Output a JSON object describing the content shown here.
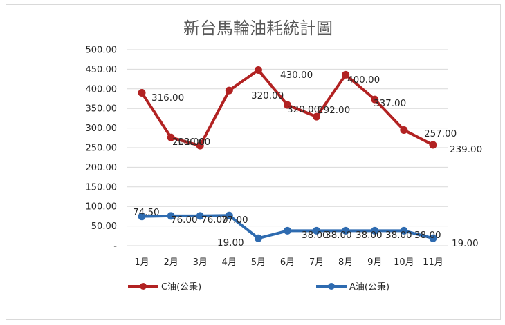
{
  "chart_data": {
    "type": "line",
    "title": "新台馬輪油耗統計圖",
    "categories": [
      "1月",
      "2月",
      "3月",
      "4月",
      "5月",
      "6月",
      "7月",
      "8月",
      "9月",
      "10月",
      "11月"
    ],
    "y_tick_labels": [
      "-",
      "50.00",
      "100.00",
      "150.00",
      "200.00",
      "250.00",
      "300.00",
      "350.00",
      "400.00",
      "450.00",
      "500.00"
    ],
    "ylim": [
      0,
      500
    ],
    "grid": true,
    "legend_position": "bottom",
    "series": [
      {
        "name": "C油(公秉)",
        "color": "#b22222",
        "values": [
          390,
          276,
          255,
          396,
          448,
          359,
          329,
          436,
          373,
          295,
          257
        ],
        "labels": [
          "316.00",
          "201.00",
          "180.00",
          "320.00",
          "430.00",
          "320.00",
          "292.00",
          "400.00",
          "337.00",
          "257.00",
          "239.00"
        ]
      },
      {
        "name": "A油(公秉)",
        "color": "#2e6bb0",
        "values": [
          74.5,
          76,
          76,
          77,
          19,
          38,
          38,
          38,
          38,
          38,
          19
        ],
        "labels": [
          "74.50",
          "76.00",
          "76.00",
          "77.00",
          "19.00",
          "38.00",
          "38.00",
          "38.00",
          "38.00",
          "38.00",
          "19.00"
        ]
      }
    ]
  }
}
